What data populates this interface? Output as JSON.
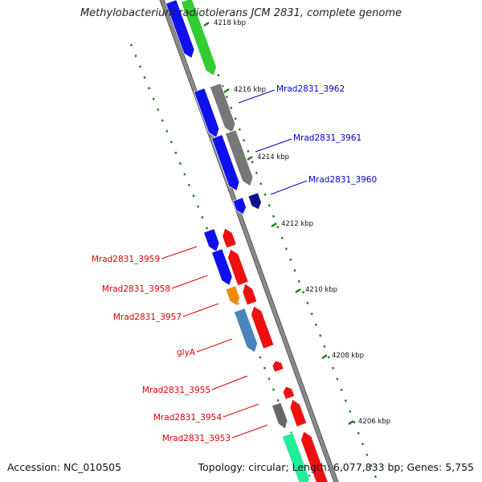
{
  "header": {
    "title": "Methylobacterium radiotolerans JCM 2831, complete genome"
  },
  "footer": {
    "accession": "Accession: NC_010505",
    "summary": "Topology: circular; Length: 6,077,833 bp; Genes: 5,755"
  },
  "scale": {
    "ticks": [
      "4218 kbp",
      "4216 kbp",
      "4214 kbp",
      "4212 kbp",
      "4210 kbp",
      "4208 kbp",
      "4206 kbp"
    ]
  },
  "colors": {
    "backbone": "#8a8a8a",
    "ruler_dots": "#1f7a1f",
    "label_forward": "#0000cc",
    "label_reverse": "#dd0000",
    "tick_label": "#111111"
  },
  "genes": [
    {
      "label": "",
      "strand": "reverse",
      "color": "#1010ee"
    },
    {
      "label": "",
      "strand": "reverse",
      "color": "#33cc33"
    },
    {
      "label": "",
      "strand": "reverse",
      "color": "#1010ee"
    },
    {
      "label": "",
      "strand": "reverse",
      "color": "#777777"
    },
    {
      "label": "",
      "strand": "reverse",
      "color": "#1010ee"
    },
    {
      "label": "",
      "strand": "reverse",
      "color": "#777777"
    },
    {
      "label": "",
      "strand": "reverse",
      "color": "#1010ee"
    },
    {
      "label": "",
      "strand": "reverse",
      "color": "#10108a"
    },
    {
      "label": "",
      "strand": "forward",
      "color": "#ee1010"
    },
    {
      "label": "",
      "strand": "reverse",
      "color": "#1010ee"
    },
    {
      "label": "",
      "strand": "forward",
      "color": "#ee1010"
    },
    {
      "label": "",
      "strand": "reverse",
      "color": "#1010ee"
    },
    {
      "label": "",
      "strand": "forward",
      "color": "#ee1010"
    },
    {
      "label": "",
      "strand": "reverse",
      "color": "#ee8a00"
    },
    {
      "label": "",
      "strand": "forward",
      "color": "#ee1010"
    },
    {
      "label": "",
      "strand": "reverse",
      "color": "#4a84bd"
    },
    {
      "label": "",
      "strand": "forward",
      "color": "#ee1010"
    },
    {
      "label": "",
      "strand": "forward",
      "color": "#ee1010"
    },
    {
      "label": "",
      "strand": "reverse",
      "color": "#666666"
    },
    {
      "label": "",
      "strand": "forward",
      "color": "#ee1010"
    },
    {
      "label": "",
      "strand": "reverse",
      "color": "#22ee99"
    },
    {
      "label": "",
      "strand": "forward",
      "color": "#ee1010"
    }
  ],
  "gene_labels": [
    {
      "text": "Mrad2831_3962",
      "side": "right"
    },
    {
      "text": "Mrad2831_3961",
      "side": "right"
    },
    {
      "text": "Mrad2831_3960",
      "side": "right"
    },
    {
      "text": "Mrad2831_3959",
      "side": "left"
    },
    {
      "text": "Mrad2831_3958",
      "side": "left"
    },
    {
      "text": "Mrad2831_3957",
      "side": "left"
    },
    {
      "text": "glyA",
      "side": "left"
    },
    {
      "text": "Mrad2831_3955",
      "side": "left"
    },
    {
      "text": "Mrad2831_3954",
      "side": "left"
    },
    {
      "text": "Mrad2831_3953",
      "side": "left"
    }
  ]
}
